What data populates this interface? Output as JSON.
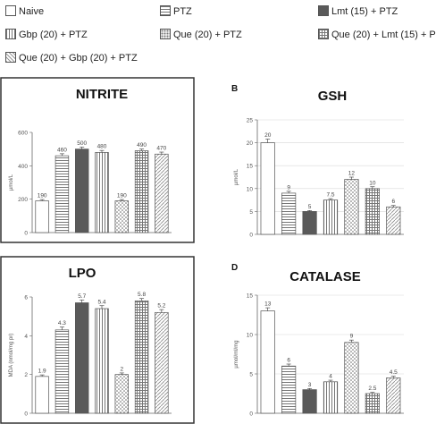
{
  "legend": [
    {
      "label": "Naive",
      "pattern": "plain"
    },
    {
      "label": "PTZ",
      "pattern": "hstripe"
    },
    {
      "label": "Lmt (15) + PTZ",
      "pattern": "dark"
    },
    {
      "label": "Gbp (20) + PTZ",
      "pattern": "vstripe"
    },
    {
      "label": "Que (20) + PTZ",
      "pattern": "dots"
    },
    {
      "label": "Que (20) + Lmt (15) + P",
      "pattern": "grid"
    },
    {
      "label": "Que (20) + Gbp (20) + PTZ",
      "pattern": "zigzag"
    }
  ],
  "colors": {
    "dark": "#5a5a5a",
    "stroke": "#555555",
    "frame": "#333333",
    "grid": "#d8d8d8"
  },
  "chart_data": [
    {
      "type": "bar",
      "letter": "",
      "title": "NITRITE",
      "ylabel": "µmol/L",
      "ylim": [
        0,
        600
      ],
      "yticks": [
        0,
        200,
        400,
        600
      ],
      "categories": [
        "Naive",
        "PTZ",
        "Lmt (15) + PTZ",
        "Gbp (20) + PTZ",
        "Que (20) + PTZ",
        "Que (20) + Lmt (15) + P",
        "Que (20) + Gbp (20) + PTZ"
      ],
      "values": [
        190,
        460,
        500,
        480,
        190,
        490,
        470
      ],
      "labels": [
        "190",
        "460",
        "500",
        "480",
        "190",
        "490",
        "470"
      ],
      "errors": [
        8,
        12,
        12,
        12,
        8,
        10,
        12
      ],
      "grid": false
    },
    {
      "type": "bar",
      "letter": "B",
      "title": "GSH",
      "ylabel": "µmol/L",
      "ylim": [
        0,
        25
      ],
      "yticks": [
        0,
        5,
        10,
        15,
        20,
        25
      ],
      "categories": [
        "Naive",
        "PTZ",
        "Lmt (15) + PTZ",
        "Gbp (20) + PTZ",
        "Que (20) + PTZ",
        "Que (20) + Lmt (15) + P",
        "Que (20) + Gbp (20) + PTZ"
      ],
      "values": [
        20,
        9,
        5,
        7.5,
        12,
        10,
        6
      ],
      "labels": [
        "20",
        "9",
        "5",
        "7.5",
        "12",
        "10",
        "6"
      ],
      "errors": [
        0.8,
        0.4,
        0.2,
        0.3,
        0.5,
        0.4,
        0.3
      ],
      "grid": true
    },
    {
      "type": "bar",
      "letter": "",
      "title": "LPO",
      "ylabel": "MDA (nmol/mg pr)",
      "ylim": [
        0,
        6
      ],
      "yticks": [
        0,
        2,
        4,
        6
      ],
      "categories": [
        "Naive",
        "PTZ",
        "Lmt (15) + PTZ",
        "Gbp (20) + PTZ",
        "Que (20) + PTZ",
        "Que (20) + Lmt (15) + P",
        "Que (20) + Gbp (20) + PTZ"
      ],
      "values": [
        1.9,
        4.3,
        5.7,
        5.4,
        2,
        5.8,
        5.2
      ],
      "labels": [
        "1.9",
        "4.3",
        "5.7",
        "5.4",
        "2",
        "5.8",
        "5.2"
      ],
      "errors": [
        0.08,
        0.15,
        0.15,
        0.15,
        0.08,
        0.12,
        0.15
      ],
      "grid": false
    },
    {
      "type": "bar",
      "letter": "D",
      "title": "CATALASE",
      "ylabel": "µmol/ml/mg",
      "ylim": [
        0,
        15
      ],
      "yticks": [
        0,
        5,
        10,
        15
      ],
      "categories": [
        "Naive",
        "PTZ",
        "Lmt (15) + PTZ",
        "Gbp (20) + PTZ",
        "Que (20) + PTZ",
        "Que (20) + Lmt (15) + P",
        "Que (20) + Gbp (20) + PTZ"
      ],
      "values": [
        13,
        6,
        3,
        4,
        9,
        2.5,
        4.5
      ],
      "labels": [
        "13",
        "6",
        "3",
        "4",
        "9",
        "2.5",
        "4.5"
      ],
      "errors": [
        0.4,
        0.25,
        0.15,
        0.2,
        0.3,
        0.15,
        0.2
      ],
      "grid": true
    }
  ]
}
